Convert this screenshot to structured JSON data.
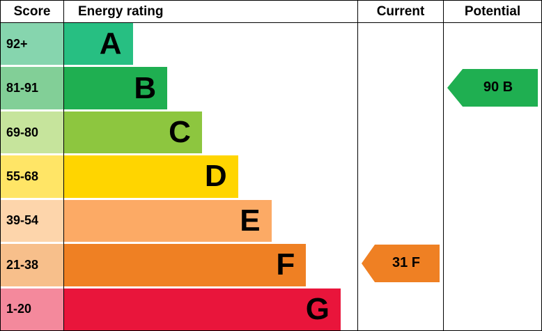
{
  "header": {
    "score": "Score",
    "rating": "Energy rating",
    "current": "Current",
    "potential": "Potential"
  },
  "chart_data": {
    "type": "bar",
    "orientation": "horizontal",
    "title": "Energy rating",
    "bands": [
      {
        "score": "92+",
        "letter": "A",
        "bar_color": "#27bf82",
        "score_color": "#86d5ae",
        "width_frac": 0.234
      },
      {
        "score": "81-91",
        "letter": "B",
        "bar_color": "#1faf51",
        "score_color": "#82cf97",
        "width_frac": 0.352
      },
      {
        "score": "69-80",
        "letter": "C",
        "bar_color": "#8dc63f",
        "score_color": "#c6e49c",
        "width_frac": 0.47
      },
      {
        "score": "55-68",
        "letter": "D",
        "bar_color": "#ffd500",
        "score_color": "#ffe566",
        "width_frac": 0.593
      },
      {
        "score": "39-54",
        "letter": "E",
        "bar_color": "#fcaa65",
        "score_color": "#fdd5ab",
        "width_frac": 0.707
      },
      {
        "score": "21-38",
        "letter": "F",
        "bar_color": "#ef8023",
        "score_color": "#f7bf8b",
        "width_frac": 0.825
      },
      {
        "score": "1-20",
        "letter": "G",
        "bar_color": "#e9153b",
        "score_color": "#f4899c",
        "width_frac": 0.943
      }
    ],
    "current": {
      "label": "31 F",
      "value": 31,
      "band": "F",
      "color": "#ef8023",
      "row_index": 5
    },
    "potential": {
      "label": "90 B",
      "value": 90,
      "band": "B",
      "color": "#1faf51",
      "row_index": 1
    }
  }
}
